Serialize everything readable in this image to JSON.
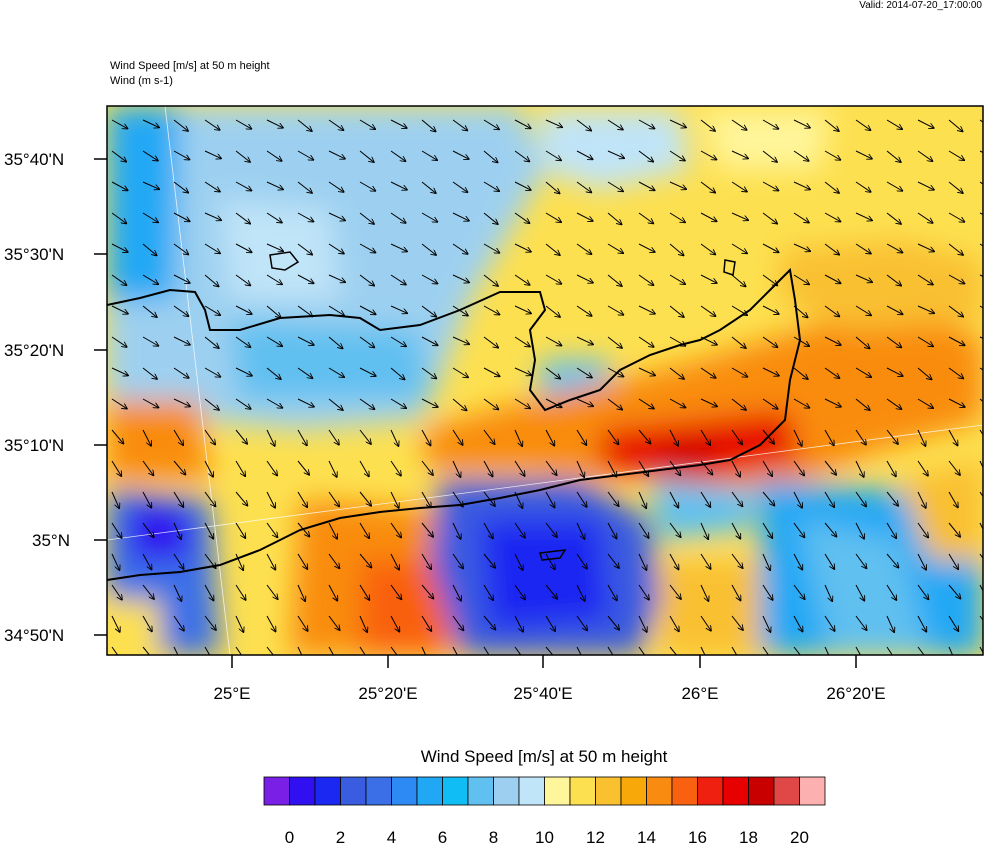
{
  "header": {
    "valid_time": "Valid: 2014-07-20_17:00:00",
    "title_line1": "Wind Speed [m/s] at 50 m height",
    "title_line2": "Wind   (m s-1)"
  },
  "map": {
    "lat_labels": [
      "35°40'N",
      "35°30'N",
      "35°20'N",
      "35°10'N",
      "35°N",
      "34°50'N"
    ],
    "lon_labels": [
      "25°E",
      "25°20'E",
      "25°40'E",
      "26°E",
      "26°20'E"
    ],
    "field": "Wind Speed [m/s] at 50 m height",
    "vectors": "wind direction arrows, predominantly NW to SE"
  },
  "colorbar": {
    "title": "Wind Speed [m/s] at 50 m height",
    "labels": [
      "0",
      "2",
      "4",
      "6",
      "8",
      "10",
      "12",
      "14",
      "16",
      "18",
      "20"
    ],
    "colors": [
      "#7a1fe6",
      "#3010f0",
      "#1a28f2",
      "#3a5ce0",
      "#3a6fe8",
      "#2d8af5",
      "#20a8f5",
      "#10bdf5",
      "#60c0f0",
      "#9dd0f0",
      "#c0e4f8",
      "#fff59a",
      "#fde050",
      "#f9c030",
      "#f8a808",
      "#f98c10",
      "#f96010",
      "#f02010",
      "#e80000",
      "#c80000",
      "#e04848",
      "#fcb0b0"
    ]
  }
}
